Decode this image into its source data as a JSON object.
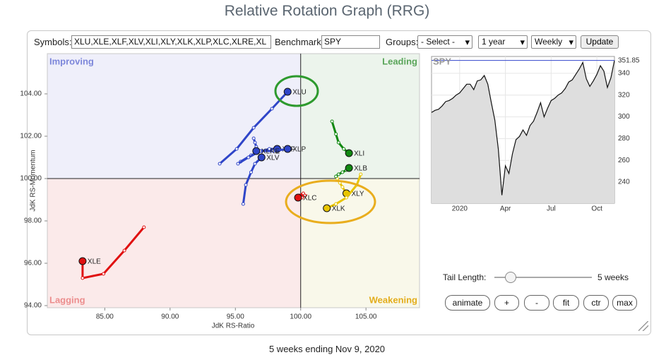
{
  "header": {
    "title": "Relative Rotation Graph (RRG)"
  },
  "controls": {
    "symbols_label": "Symbols:",
    "symbols_value": "XLU,XLE,XLF,XLV,XLI,XLY,XLK,XLP,XLC,XLRE,XL",
    "benchmark_label": "Benchmark:",
    "benchmark_value": "SPY",
    "groups_label": "Groups:",
    "groups_value": "- Select -",
    "period_value": "1 year",
    "frequency_value": "Weekly",
    "update_button": "Update",
    "tail_length_label": "Tail Length:",
    "tail_length_value": "5 weeks",
    "buttons": [
      "animate",
      "+",
      "-",
      "fit",
      "ctr",
      "max"
    ]
  },
  "footer": "5 weeks ending Nov 9, 2020",
  "chart_data": [
    {
      "type": "scatter",
      "x_label": "JdK RS-Ratio",
      "y_label": "JdK RS-Momentum",
      "xlim": [
        80.6,
        109.1
      ],
      "ylim": [
        93.9,
        105.9
      ],
      "xticks": [
        {
          "value": 85,
          "label": "85.00"
        },
        {
          "value": 90,
          "label": "90.00"
        },
        {
          "value": 95,
          "label": "95.00"
        },
        {
          "value": 100,
          "label": "100.00"
        },
        {
          "value": 105,
          "label": "105.00"
        }
      ],
      "yticks": [
        {
          "value": 94,
          "label": "94.00"
        },
        {
          "value": 96,
          "label": "96.00"
        },
        {
          "value": 98,
          "label": "98.00"
        },
        {
          "value": 100,
          "label": "100.00"
        },
        {
          "value": 102,
          "label": "102.00"
        },
        {
          "value": 104,
          "label": "104.00"
        }
      ],
      "quadrant_center": [
        100,
        100
      ],
      "quadrants": [
        {
          "name": "Improving",
          "color": "#7c86da",
          "fill": "#efeffa"
        },
        {
          "name": "Leading",
          "color": "#5aa55a",
          "fill": "#ecf4ec"
        },
        {
          "name": "Lagging",
          "color": "#ec8e8e",
          "fill": "#fbeaea"
        },
        {
          "name": "Weakening",
          "color": "#e3ad1c",
          "fill": "#f9f8ea"
        }
      ],
      "series": [
        {
          "name": "XLU",
          "color": "#2f45c8",
          "x": [
            93.8,
            95.1,
            96.4,
            97.8,
            99.0
          ],
          "values": [
            100.7,
            101.4,
            102.4,
            103.3,
            104.1
          ]
        },
        {
          "name": "XLE",
          "color": "#e01010",
          "x": [
            88.0,
            86.5,
            84.9,
            83.3,
            83.3
          ],
          "values": [
            97.7,
            96.6,
            95.5,
            95.3,
            96.1
          ]
        },
        {
          "name": "XLF",
          "color": "#2f45c8",
          "x": [
            95.4,
            96.2,
            97.0,
            97.6,
            98.2
          ],
          "values": [
            100.8,
            101.1,
            101.3,
            101.4,
            101.4
          ]
        },
        {
          "name": "XLV",
          "color": "#2f45c8",
          "x": [
            95.6,
            95.8,
            96.2,
            96.5,
            97.0
          ],
          "values": [
            98.8,
            99.7,
            100.3,
            100.7,
            101.0
          ]
        },
        {
          "name": "XLI",
          "color": "#118811",
          "x": [
            102.4,
            102.7,
            102.9,
            103.3,
            103.7
          ],
          "values": [
            102.7,
            102.1,
            101.7,
            101.4,
            101.2
          ]
        },
        {
          "name": "XLY",
          "color": "#e8c400",
          "x": [
            102.8,
            103.0,
            103.2,
            103.4,
            103.5
          ],
          "values": [
            100.0,
            99.8,
            99.6,
            99.4,
            99.3
          ]
        },
        {
          "name": "XLK",
          "color": "#e8c400",
          "x": [
            104.6,
            104.3,
            103.5,
            102.7,
            102.0
          ],
          "values": [
            100.2,
            99.7,
            99.1,
            98.8,
            98.6
          ]
        },
        {
          "name": "XLP",
          "color": "#2f45c8",
          "x": [
            95.2,
            96.0,
            96.9,
            97.9,
            99.0
          ],
          "values": [
            100.7,
            101.0,
            101.3,
            101.3,
            101.4
          ]
        },
        {
          "name": "XLC",
          "color": "#e01010",
          "x": [
            100.2,
            99.9,
            100.3,
            100.1,
            99.8
          ],
          "values": [
            99.3,
            99.2,
            99.2,
            99.1,
            99.1
          ]
        },
        {
          "name": "XLRE",
          "color": "#2f45c8",
          "x": [
            96.4,
            96.5,
            96.6,
            96.6,
            96.6
          ],
          "values": [
            101.9,
            101.7,
            101.5,
            101.4,
            101.3
          ]
        },
        {
          "name": "XLB",
          "color": "#118811",
          "x": [
            102.7,
            102.9,
            103.2,
            103.5,
            103.7
          ],
          "values": [
            100.1,
            100.2,
            100.3,
            100.4,
            100.5
          ]
        }
      ]
    },
    {
      "type": "line",
      "title": "SPY",
      "color": "#111111",
      "area_color": "#dedede",
      "xlim": [
        0,
        52
      ],
      "xticks": [
        {
          "value": 8,
          "label": "2020"
        },
        {
          "value": 21,
          "label": "Apr"
        },
        {
          "value": 34,
          "label": "Jul"
        },
        {
          "value": 47,
          "label": "Oct"
        }
      ],
      "ylim": [
        220.6,
        355.5
      ],
      "yticks": [
        240,
        260,
        280,
        300,
        320,
        340
      ],
      "values": [
        304,
        306,
        307,
        310,
        314,
        315,
        317,
        320,
        322,
        326,
        330,
        330,
        325,
        333,
        334,
        338,
        330,
        313,
        297,
        270,
        228,
        255,
        248,
        266,
        279,
        282,
        288,
        283,
        292,
        296,
        304,
        313,
        300,
        308,
        315,
        317,
        320,
        322,
        326,
        332,
        334,
        339,
        344,
        350,
        335,
        328,
        333,
        339,
        347,
        342,
        327,
        336,
        351.85
      ],
      "last_value_label": "351.85"
    }
  ]
}
